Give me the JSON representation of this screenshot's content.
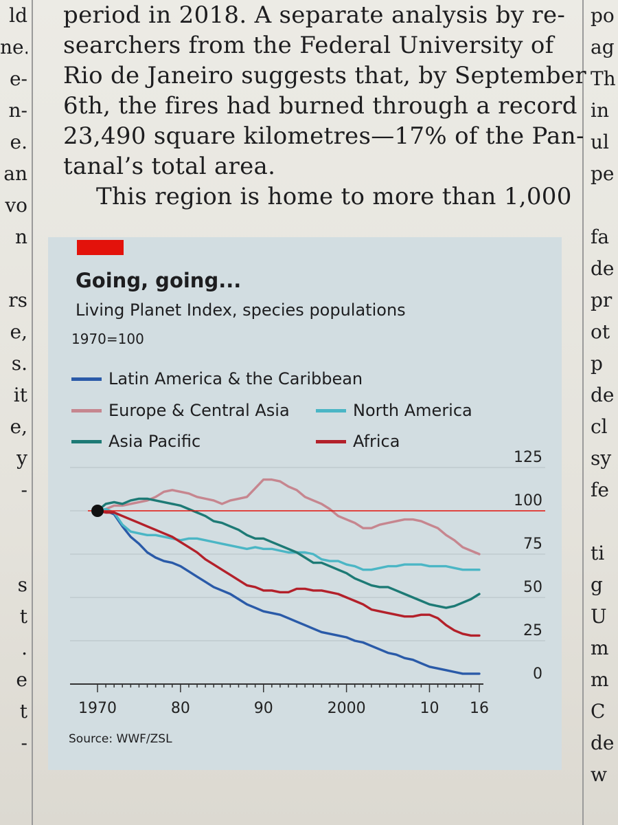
{
  "article": {
    "lines": [
      "period in 2018. A separate analysis by re-",
      "searchers from the Federal University of",
      "Rio de Janeiro suggests that, by September",
      "6th, the fires had burned through a record",
      "23,490 square kilometres—17% of the Pan-",
      "tanal’s total area.",
      "This region is home to more than 1,000"
    ]
  },
  "left_column": [
    "ld",
    "ne.",
    "e-",
    "n-",
    "e.",
    "an",
    "vo",
    "n",
    "",
    "rs",
    "e,",
    "s.",
    "it",
    "e,",
    "y",
    "-",
    "",
    "",
    "s",
    "t",
    ".",
    "e",
    "t",
    "-"
  ],
  "right_column": [
    "po",
    "ag",
    "Th",
    "in",
    "ul",
    "pe",
    "",
    "fa",
    "de",
    "pr",
    "ot",
    "p",
    "de",
    "cl",
    "sy",
    "fe",
    "",
    "ti",
    "g",
    "U",
    "m",
    "m",
    "C",
    "de",
    "w"
  ],
  "chart": {
    "title": "Going, going...",
    "subtitle": "Living Planet Index, species populations",
    "unit": "1970=100",
    "source": "Source: WWF/ZSL",
    "colors": {
      "tag": "#e3120b",
      "panel": "#d2dde1",
      "reference_line": "#e3120b",
      "start_dot": "#111111",
      "grid": "#b6c1c5"
    }
  },
  "chart_data": {
    "type": "line",
    "title": "Going, going...",
    "subtitle": "Living Planet Index, species populations",
    "ylabel": "1970=100",
    "xlabel": "",
    "xlim": [
      1970,
      2016
    ],
    "ylim": [
      0,
      125
    ],
    "x_ticks": [
      1970,
      1980,
      1990,
      2000,
      2010,
      2016
    ],
    "x_tick_labels": [
      "1970",
      "80",
      "90",
      "2000",
      "10",
      "16"
    ],
    "y_ticks": [
      0,
      25,
      50,
      75,
      100,
      125
    ],
    "y_tick_labels": [
      "0",
      "25",
      "50",
      "75",
      "100",
      "125"
    ],
    "reference_value": 100,
    "grid": true,
    "y_axis_side": "right",
    "legend_position": "top",
    "x": [
      1970,
      1971,
      1972,
      1973,
      1974,
      1975,
      1976,
      1977,
      1978,
      1979,
      1980,
      1981,
      1982,
      1983,
      1984,
      1985,
      1986,
      1987,
      1988,
      1989,
      1990,
      1991,
      1992,
      1993,
      1994,
      1995,
      1996,
      1997,
      1998,
      1999,
      2000,
      2001,
      2002,
      2003,
      2004,
      2005,
      2006,
      2007,
      2008,
      2009,
      2010,
      2011,
      2012,
      2013,
      2014,
      2015,
      2016
    ],
    "series": [
      {
        "name": "Latin America & the Caribbean",
        "color": "#2a5aa8",
        "values": [
          100,
          100,
          98,
          91,
          85,
          81,
          76,
          73,
          71,
          70,
          68,
          65,
          62,
          59,
          56,
          54,
          52,
          49,
          46,
          44,
          42,
          41,
          40,
          38,
          36,
          34,
          32,
          30,
          29,
          28,
          27,
          25,
          24,
          22,
          20,
          18,
          17,
          15,
          14,
          12,
          10,
          9,
          8,
          7,
          6,
          6,
          6
        ]
      },
      {
        "name": "Europe & Central Asia",
        "color": "#c6868f",
        "values": [
          100,
          101,
          103,
          103,
          104,
          105,
          106,
          108,
          111,
          112,
          111,
          110,
          108,
          107,
          106,
          104,
          106,
          107,
          108,
          113,
          118,
          118,
          117,
          114,
          112,
          108,
          106,
          104,
          101,
          97,
          95,
          93,
          90,
          90,
          92,
          93,
          94,
          95,
          95,
          94,
          92,
          90,
          86,
          83,
          79,
          77,
          75
        ]
      },
      {
        "name": "North America",
        "color": "#4bb6c5",
        "values": [
          100,
          101,
          99,
          92,
          88,
          87,
          86,
          86,
          85,
          84,
          83,
          84,
          84,
          83,
          82,
          81,
          80,
          79,
          78,
          79,
          78,
          78,
          77,
          76,
          76,
          76,
          75,
          72,
          71,
          71,
          69,
          68,
          66,
          66,
          67,
          68,
          68,
          69,
          69,
          69,
          68,
          68,
          68,
          67,
          66,
          66,
          66
        ]
      },
      {
        "name": "Asia Pacific",
        "color": "#1d7a75",
        "values": [
          100,
          104,
          105,
          104,
          106,
          107,
          107,
          106,
          105,
          104,
          103,
          101,
          99,
          97,
          94,
          93,
          91,
          89,
          86,
          84,
          84,
          82,
          80,
          78,
          76,
          73,
          70,
          70,
          68,
          66,
          64,
          61,
          59,
          57,
          56,
          56,
          54,
          52,
          50,
          48,
          46,
          45,
          44,
          45,
          47,
          49,
          52
        ]
      },
      {
        "name": "Africa",
        "color": "#b3202a",
        "values": [
          100,
          99,
          99,
          97,
          95,
          93,
          91,
          89,
          87,
          85,
          82,
          79,
          76,
          72,
          69,
          66,
          63,
          60,
          57,
          56,
          54,
          54,
          53,
          53,
          55,
          55,
          54,
          54,
          53,
          52,
          50,
          48,
          46,
          43,
          42,
          41,
          40,
          39,
          39,
          40,
          40,
          38,
          34,
          31,
          29,
          28,
          28
        ]
      }
    ]
  }
}
